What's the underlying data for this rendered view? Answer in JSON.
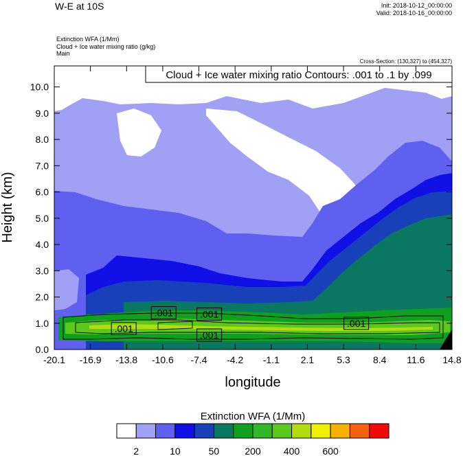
{
  "header": {
    "title": "W-E at 10S",
    "init": "Init: 2018-10-12_00:00:00",
    "valid": "Valid: 2018-10-16_00:00:00",
    "field1": "Extinction WFA   (1/Mm)",
    "field2": "Cloud + Ice water mixing ratio   (g/kg)",
    "field3": "Main",
    "cross_section": "Cross-Section: (130,327) to (454,327)"
  },
  "chart_data": {
    "type": "heatmap",
    "xlabel": "longitude",
    "ylabel": "Height (km)",
    "xlim": [
      -20.1,
      14.8
    ],
    "ylim": [
      0.0,
      10.8
    ],
    "x_ticks": [
      "-20.1",
      "-16.9",
      "-13.8",
      "-10.6",
      "-7.4",
      "-4.2",
      "-1.1",
      "2.1",
      "5.3",
      "8.4",
      "11.6",
      "14.8"
    ],
    "y_ticks": [
      "0.0",
      "1.0",
      "2.0",
      "3.0",
      "4.0",
      "5.0",
      "6.0",
      "7.0",
      "8.0",
      "9.0",
      "10.0"
    ],
    "y_tick_values": [
      0,
      1,
      2,
      3,
      4,
      5,
      6,
      7,
      8,
      9,
      10
    ],
    "contour_legend": "Cloud + Ice water mixing ratio Contours: .001 to .1 by .099",
    "contour_labels": [
      {
        "text": ".001",
        "x": -14.0,
        "y": 0.8
      },
      {
        "text": ".001",
        "x": -10.5,
        "y": 1.4
      },
      {
        "text": ".001",
        "x": -6.5,
        "y": 1.35
      },
      {
        "text": ".001",
        "x": -6.5,
        "y": 0.55
      },
      {
        "text": ".001",
        "x": 6.4,
        "y": 1.0
      }
    ],
    "colorbar": {
      "title": "Extinction WFA  (1/Mm)",
      "colors": [
        "#ffffff",
        "#a0a0f5",
        "#6060f0",
        "#1010e6",
        "#1840b8",
        "#0a7860",
        "#10a020",
        "#30b828",
        "#5cc81c",
        "#b0dc10",
        "#f0f000",
        "#f5b000",
        "#f56010",
        "#f00a0a"
      ],
      "labels": [
        "2",
        "10",
        "50",
        "200",
        "400",
        "600"
      ]
    }
  }
}
